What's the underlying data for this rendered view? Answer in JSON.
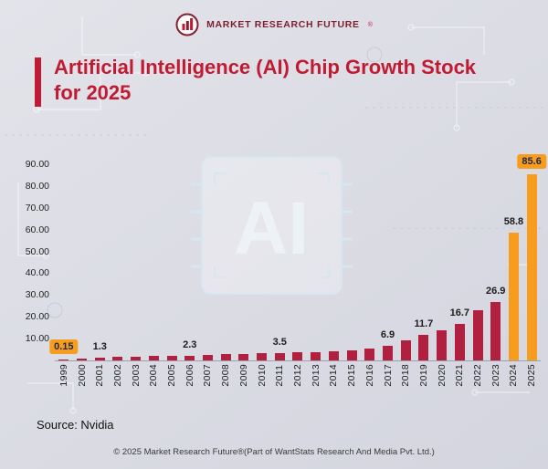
{
  "brand": {
    "logo_text": "MARKET RESEARCH FUTURE",
    "registered": "®"
  },
  "title_lines": [
    "Artificial Intelligence (AI) Chip Growth Stock",
    "for 2025"
  ],
  "watermark_text": "AI",
  "source": "Source: Nvidia",
  "copyright": "© 2025 Market Research Future®(Part of WantStats Research And Media Pvt. Ltd.)",
  "colors": {
    "accent_red": "#c11b33",
    "bar_crimson": "#b22040",
    "bar_orange": "#f89c1e",
    "background": "#dbdce4"
  },
  "chart_data": {
    "type": "bar",
    "title": "Artificial Intelligence (AI) Chip Growth Stock for 2025",
    "categories": [
      "1999",
      "2000",
      "2001",
      "2002",
      "2003",
      "2004",
      "2005",
      "2006",
      "2007",
      "2008",
      "2009",
      "2010",
      "2011",
      "2012",
      "2013",
      "2014",
      "2015",
      "2016",
      "2017",
      "2018",
      "2019",
      "2020",
      "2021",
      "2022",
      "2023",
      "2024",
      "2025"
    ],
    "values": [
      0.15,
      0.8,
      1.3,
      1.5,
      1.7,
      2.0,
      2.1,
      2.3,
      2.6,
      2.8,
      2.9,
      3.2,
      3.5,
      3.7,
      3.9,
      4.2,
      4.6,
      5.5,
      6.9,
      9.4,
      11.7,
      14.0,
      16.7,
      23.0,
      26.9,
      58.8,
      85.6
    ],
    "labels": [
      "0.15",
      null,
      "1.3",
      null,
      null,
      null,
      null,
      "2.3",
      null,
      null,
      null,
      null,
      "3.5",
      null,
      null,
      null,
      null,
      null,
      "6.9",
      null,
      "11.7",
      null,
      "16.7",
      null,
      "26.9",
      "58.8",
      "85.6"
    ],
    "boxed_label_categories": [
      "1999",
      "2025"
    ],
    "highlight_categories": [
      "2024",
      "2025"
    ],
    "xlabel": "",
    "ylabel": "",
    "ylim": [
      0,
      90
    ],
    "yticks": [
      "90.00",
      "80.00",
      "70.00",
      "60.00",
      "50.00",
      "40.00",
      "30.00",
      "20.00",
      "10.00"
    ],
    "grid": false,
    "legend": false
  }
}
